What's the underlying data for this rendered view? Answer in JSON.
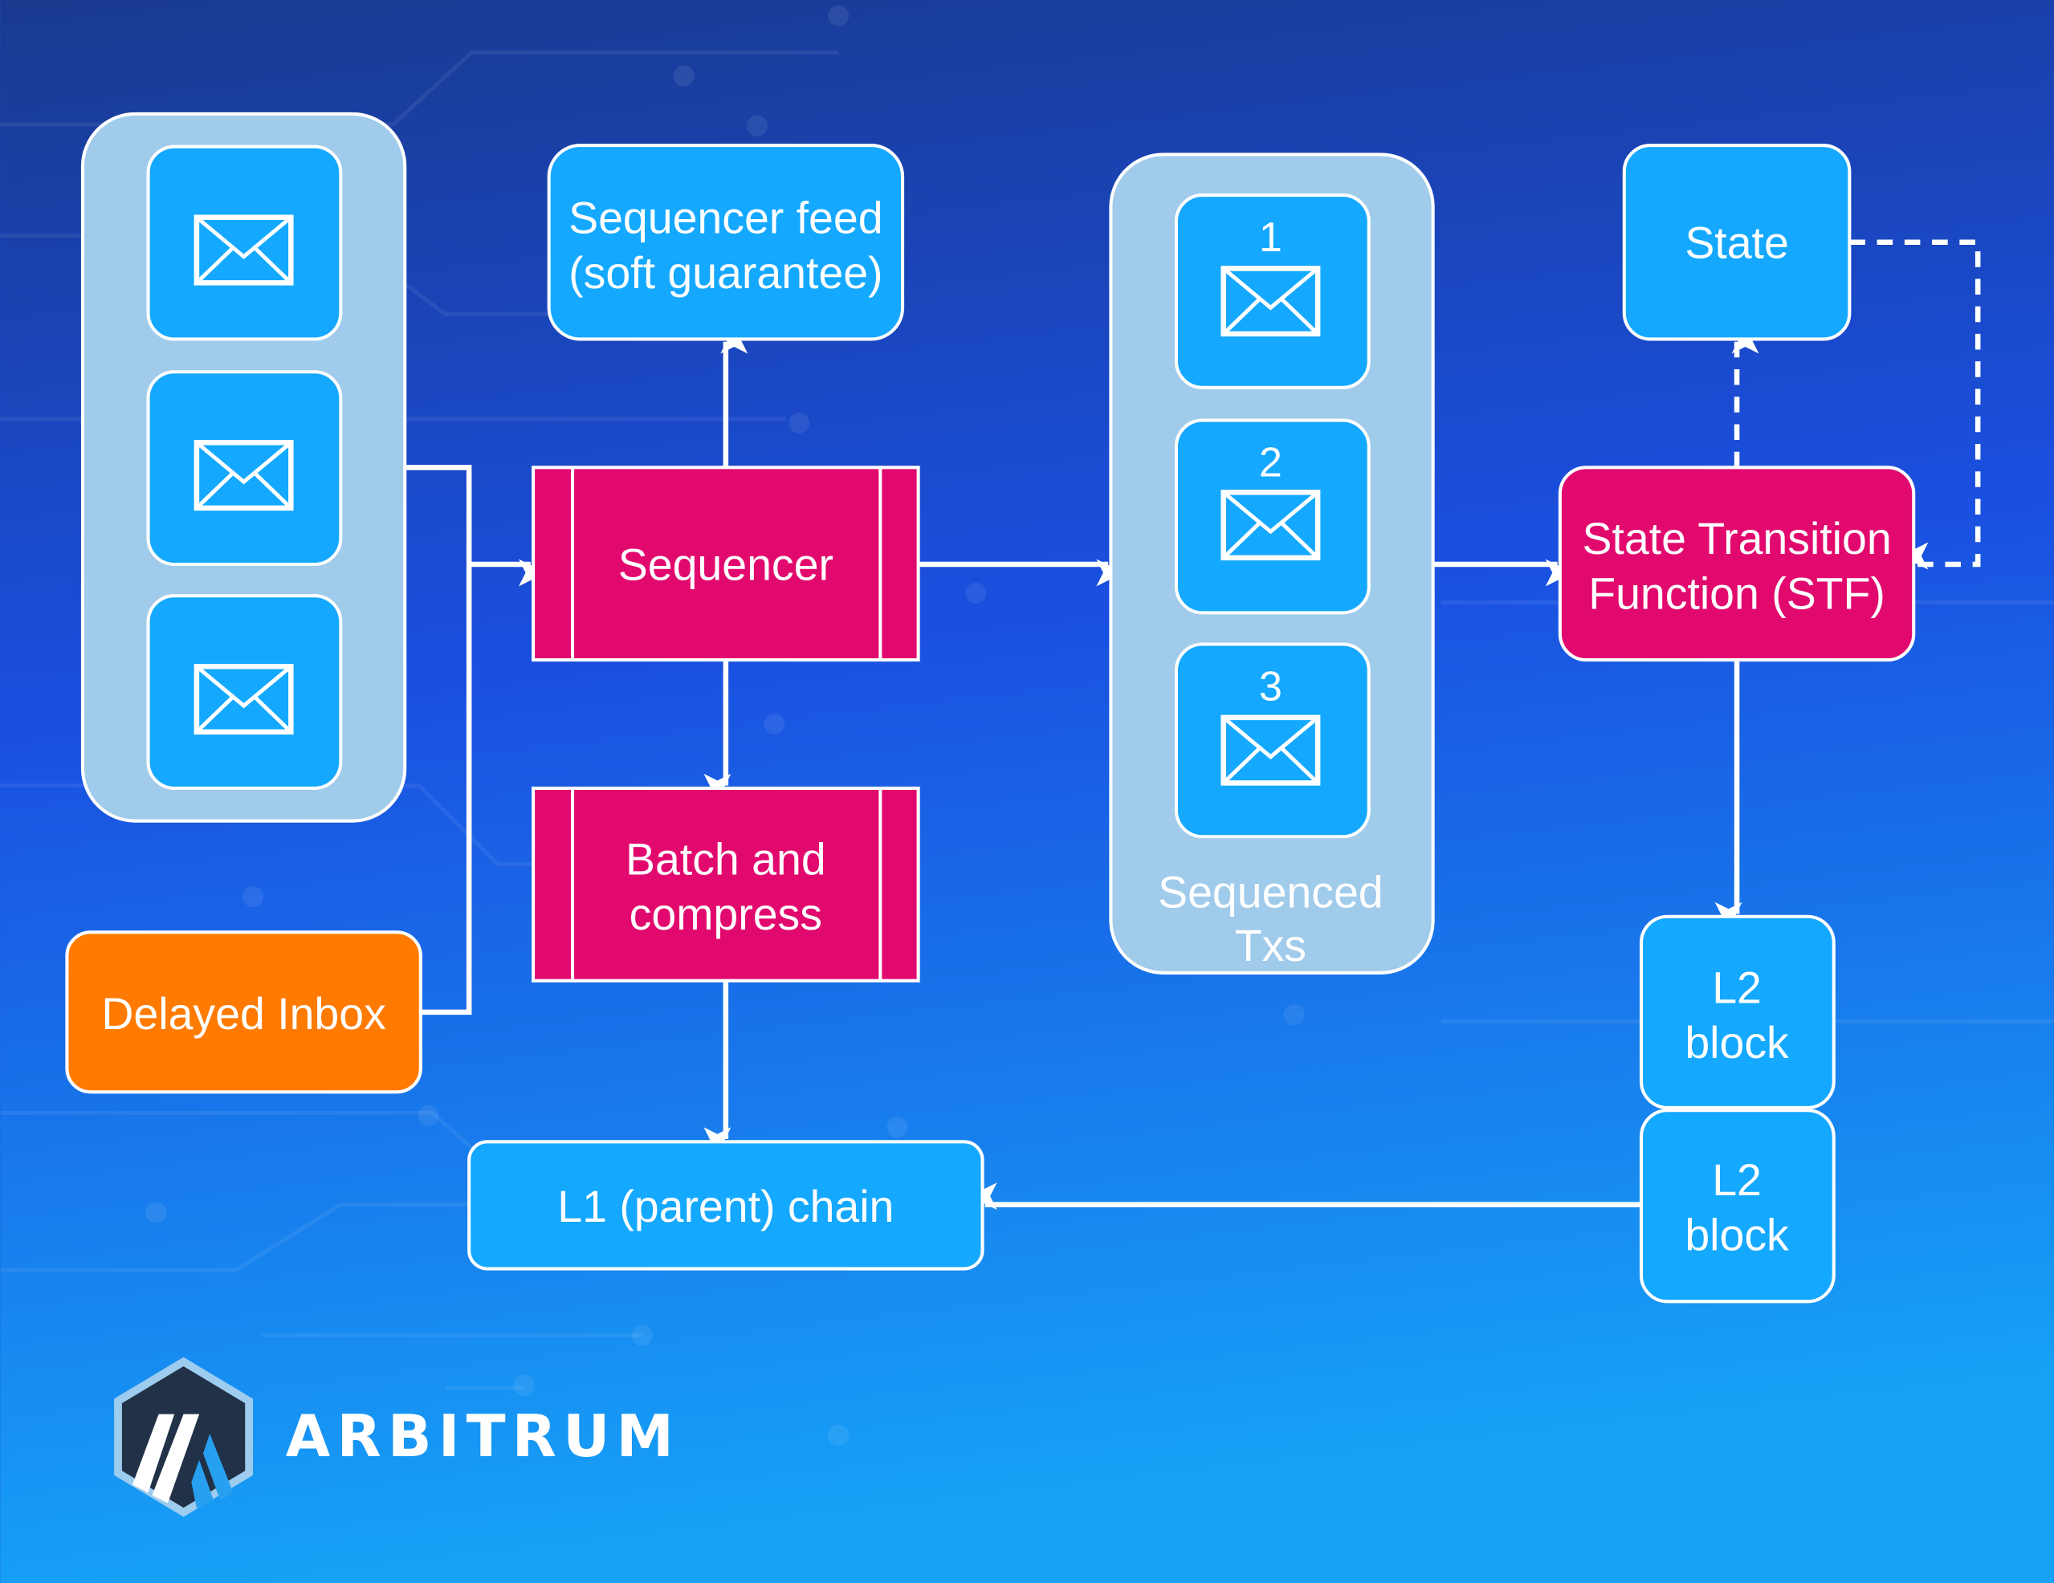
{
  "colors": {
    "background_top": "#1a3a8f",
    "background_mid": "#1a4fe0",
    "background_bottom": "#16a2f7",
    "container": "#a0cbeb",
    "message_box": "#14a8ff",
    "process_box": "#e2096e",
    "delayed_inbox": "#ff7a00",
    "stroke": "#ffffff"
  },
  "incoming_messages": {
    "icon": "envelope-icon",
    "count": 3
  },
  "sequencer_feed": {
    "line1": "Sequencer feed",
    "line2": "(soft guarantee)"
  },
  "sequencer": {
    "label": "Sequencer"
  },
  "batch_compress": {
    "line1": "Batch and",
    "line2": "compress"
  },
  "sequenced_txs": {
    "items": [
      {
        "number": "1"
      },
      {
        "number": "2"
      },
      {
        "number": "3"
      }
    ],
    "line1": "Sequenced",
    "line2": "Txs"
  },
  "state": {
    "label": "State"
  },
  "stf": {
    "line1": "State Transition",
    "line2": "Function (STF)"
  },
  "l2_blocks": [
    {
      "line1": "L2",
      "line2": "block"
    },
    {
      "line1": "L2",
      "line2": "block"
    }
  ],
  "delayed_inbox": {
    "label": "Delayed Inbox"
  },
  "l1_chain": {
    "label": "L1 (parent) chain"
  },
  "logo": {
    "text": "ARBITRUM"
  }
}
